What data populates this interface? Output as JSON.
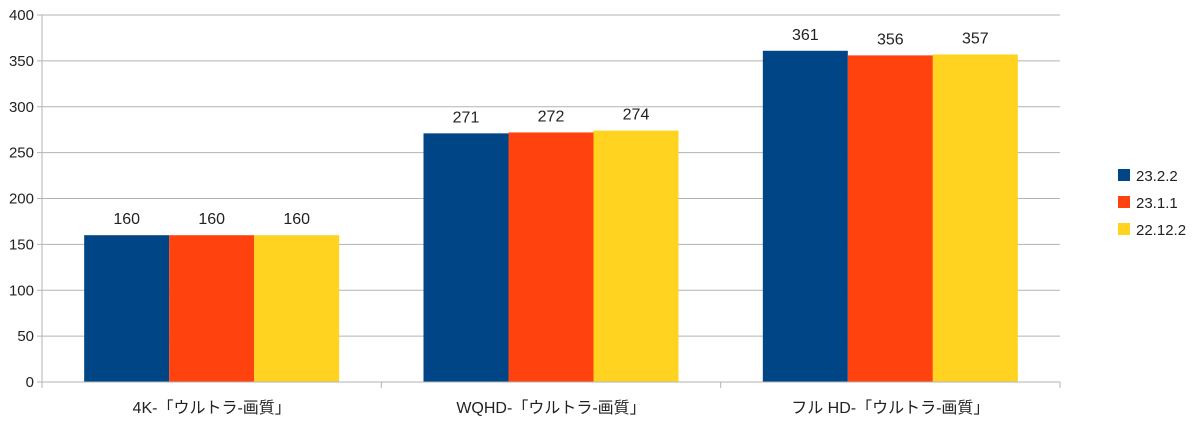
{
  "chart_data": {
    "type": "bar",
    "categories": [
      "4K-「ウルトラ-画質」",
      "WQHD-「ウルトラ-画質」",
      "フル HD-「ウルトラ-画質」"
    ],
    "series": [
      {
        "name": "23.2.2",
        "values": [
          160,
          271,
          361
        ],
        "color": "#004586"
      },
      {
        "name": "23.1.1",
        "values": [
          160,
          272,
          356
        ],
        "color": "#ff420e"
      },
      {
        "name": "22.12.2",
        "values": [
          160,
          274,
          357
        ],
        "color": "#ffd320"
      }
    ],
    "title": "",
    "xlabel": "",
    "ylabel": "",
    "ylim": [
      0,
      400
    ],
    "yticks": [
      0,
      50,
      100,
      150,
      200,
      250,
      300,
      350,
      400
    ],
    "grid": true,
    "legend": "right",
    "data_labels": true
  }
}
